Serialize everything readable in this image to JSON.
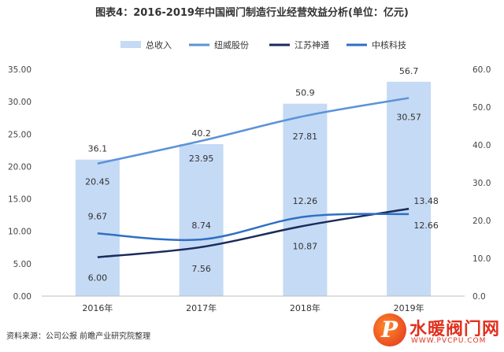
{
  "chart_data": {
    "type": "bar",
    "title": "图表4：2016-2019年中国阀门制造行业经营效益分析(单位：亿元)",
    "categories": [
      "2016年",
      "2017年",
      "2018年",
      "2019年"
    ],
    "ylim_left": [
      0,
      35
    ],
    "ylim_right": [
      0,
      60
    ],
    "yticks_left": [
      "0.00",
      "5.00",
      "10.00",
      "15.00",
      "20.00",
      "25.00",
      "30.00",
      "35.00"
    ],
    "yticks_right": [
      "0.0",
      "10.0",
      "20.0",
      "30.0",
      "40.0",
      "50.0",
      "60.0"
    ],
    "grid": false,
    "legend_position": "top",
    "series": [
      {
        "name": "总收入",
        "kind": "bar",
        "axis": "right",
        "values": [
          36.1,
          40.2,
          50.9,
          56.7
        ],
        "labels": [
          "36.1",
          "40.2",
          "50.9",
          "56.7"
        ],
        "color": "#c5daf4"
      },
      {
        "name": "纽威股份",
        "kind": "line",
        "axis": "left",
        "values": [
          20.45,
          23.95,
          27.81,
          30.57
        ],
        "labels": [
          "20.45",
          "23.95",
          "27.81",
          "30.57"
        ],
        "color": "#5b93d8"
      },
      {
        "name": "江苏神通",
        "kind": "line",
        "axis": "left",
        "values": [
          6.0,
          7.56,
          10.87,
          13.48
        ],
        "labels": [
          "6.00",
          "7.56",
          "10.87",
          "13.48"
        ],
        "color": "#1a2b5c"
      },
      {
        "name": "中核科技",
        "kind": "line",
        "axis": "left",
        "values": [
          9.67,
          8.74,
          12.26,
          12.66
        ],
        "labels": [
          "9.67",
          "8.74",
          "12.26",
          "12.66"
        ],
        "color": "#2e6fc4"
      }
    ]
  },
  "source": "资料来源：公司公报 前瞻产业研究院整理",
  "logo": {
    "letter": "P",
    "name": "水暖阀门网",
    "url": "WWW.PVCPU.COM"
  }
}
